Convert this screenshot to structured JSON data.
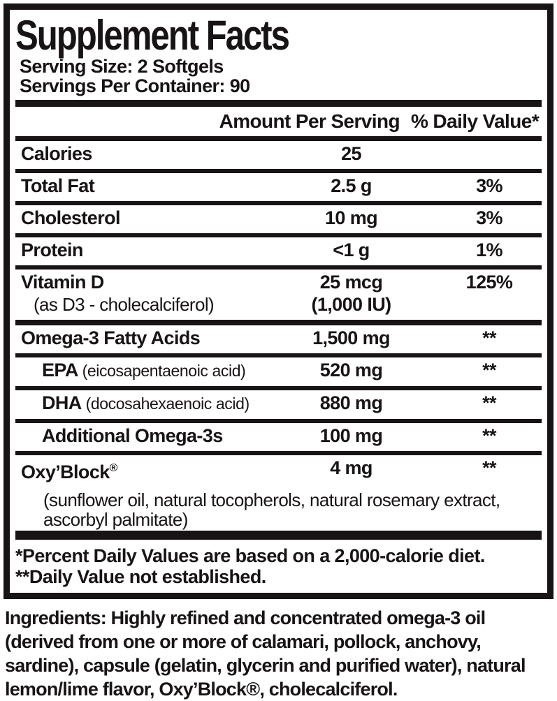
{
  "label": {
    "title": "Supplement Facts",
    "serving_size": "Serving Size: 2 Softgels",
    "servings_per_container": "Servings Per Container: 90",
    "column_headers": {
      "amount": "Amount Per Serving",
      "daily_value": "% Daily Value*"
    },
    "rows": [
      {
        "name": "Calories",
        "amount": "25",
        "dv": ""
      },
      {
        "name": "Total Fat",
        "amount": "2.5 g",
        "dv": "3%"
      },
      {
        "name": "Cholesterol",
        "amount": "10 mg",
        "dv": "3%"
      },
      {
        "name": "Protein",
        "amount": "<1 g",
        "dv": "1%"
      },
      {
        "name": "Vitamin D",
        "sub": "(as D3 - cholecalciferol)",
        "amount": "25 mcg",
        "amount_sub": "(1,000 IU)",
        "dv": "125%"
      },
      {
        "name": "Omega-3 Fatty Acids",
        "amount": "1,500 mg",
        "dv": "**"
      },
      {
        "name": "EPA",
        "note": "(eicosapentaenoic acid)",
        "amount": "520 mg",
        "dv": "**"
      },
      {
        "name": "DHA",
        "note": "(docosahexaenoic acid)",
        "amount": "880 mg",
        "dv": "**"
      },
      {
        "name": "Additional Omega-3s",
        "amount": "100 mg",
        "dv": "**"
      },
      {
        "name": "Oxy’Block",
        "reg": "®",
        "sub": "(sunflower oil, natural tocopherols, natural rosemary extract, ascorbyl palmitate)",
        "amount": "4 mg",
        "dv": "**"
      }
    ],
    "footnotes": {
      "line1": "*Percent Daily Values are based on a 2,000-calorie diet.",
      "line2": "**Daily Value not established."
    },
    "colors": {
      "ink": "#181415",
      "background": "#ffffff"
    }
  },
  "ingredients": "Ingredients: Highly refined and concentrated omega-3 oil (derived from one or more of calamari, pollock, anchovy, sardine), capsule (gelatin, glycerin and purified water), natural lemon/lime flavor, Oxy’Block®, cholecalciferol."
}
